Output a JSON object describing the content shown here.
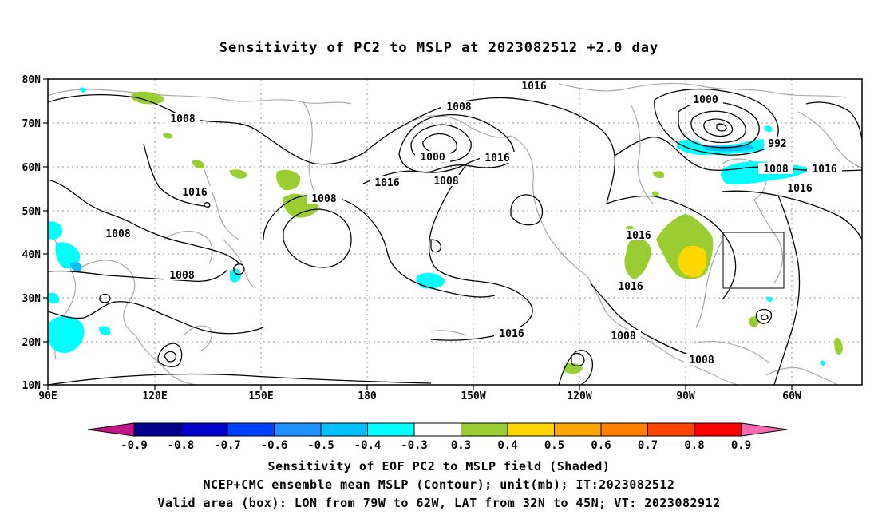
{
  "title": "Sensitivity of PC2 to MSLP at 2023082512 +2.0 day",
  "axes": {
    "lat_labels": [
      "80N",
      "70N",
      "60N",
      "50N",
      "40N",
      "30N",
      "20N",
      "10N"
    ],
    "lon_labels": [
      "90E",
      "120E",
      "150E",
      "180",
      "150W",
      "120W",
      "90W",
      "60W"
    ]
  },
  "contour_labels": {
    "l1": "1016",
    "l2": "1008",
    "l3": "1000",
    "l4": "1016",
    "l5": "1008",
    "l6": "1016",
    "l7": "1000",
    "l8": "992",
    "l9": "1008",
    "l10": "1016",
    "l11": "1016",
    "l12": "1008",
    "l13": "1016",
    "l14": "1008",
    "l15": "1008",
    "l16": "1016",
    "l17": "1016",
    "l18": "1008",
    "l19": "1016",
    "l20": "1008"
  },
  "colorbar": {
    "labels": [
      "-0.9",
      "-0.8",
      "-0.7",
      "-0.6",
      "-0.5",
      "-0.4",
      "-0.3",
      "0.3",
      "0.4",
      "0.5",
      "0.6",
      "0.7",
      "0.8",
      "0.9"
    ],
    "colors": [
      "#00008b",
      "#0000cd",
      "#0040ff",
      "#1e90ff",
      "#00bfff",
      "#00ffff",
      "#ffffff",
      "#9acd32",
      "#ffd700",
      "#ffa500",
      "#ff7f00",
      "#ff4500",
      "#ff0000"
    ],
    "low_end_color": "#c71585",
    "high_end_color": "#ff69b4"
  },
  "captions": {
    "line1": "Sensitivity of EOF PC2 to MSLP field (Shaded)",
    "line2": "NCEP+CMC ensemble mean MSLP (Contour); unit(mb); IT:2023082512",
    "line3": "Valid area (box): LON from 79W to 62W, LAT from 32N to 45N; VT: 2023082912"
  }
}
